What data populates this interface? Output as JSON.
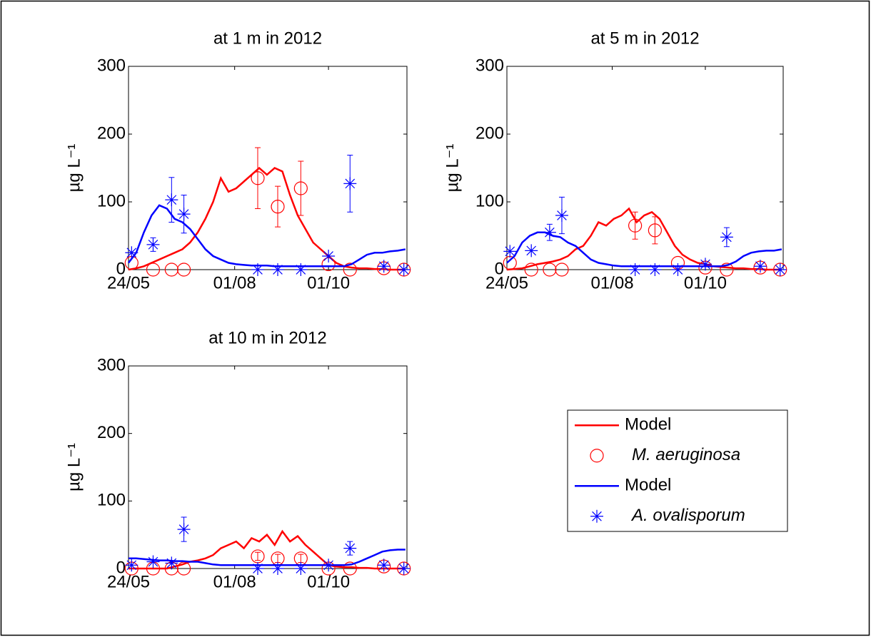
{
  "chart_data": [
    {
      "type": "line",
      "title": "at 1 m in 2012",
      "ylabel": "µg L⁻¹",
      "xlim": [
        145,
        326
      ],
      "xticks": [
        {
          "value": 145,
          "label": "24/05"
        },
        {
          "value": 214,
          "label": "01/08"
        },
        {
          "value": 275,
          "label": "01/10"
        }
      ],
      "ylim": [
        0,
        300
      ],
      "yticks": [
        0,
        100,
        200,
        300
      ],
      "series": [
        {
          "style": "line",
          "color": "#ff0000",
          "x": [
            145,
            150,
            155,
            160,
            165,
            170,
            175,
            180,
            185,
            190,
            195,
            200,
            205,
            210,
            215,
            220,
            225,
            230,
            235,
            240,
            245,
            250,
            255,
            260,
            265,
            270,
            275,
            280,
            285,
            290,
            295,
            300,
            305,
            310,
            315,
            320,
            325
          ],
          "values": [
            0,
            2,
            5,
            10,
            15,
            20,
            25,
            30,
            40,
            55,
            75,
            100,
            135,
            115,
            120,
            130,
            140,
            150,
            140,
            150,
            145,
            110,
            80,
            60,
            40,
            30,
            20,
            10,
            5,
            3,
            2,
            2,
            1,
            1,
            0,
            0,
            0
          ]
        },
        {
          "style": "circle",
          "color": "#ff0000",
          "x": [
            147,
            161,
            173,
            181,
            229,
            242,
            257,
            275,
            289,
            311,
            324
          ],
          "values": [
            10,
            0,
            0,
            0,
            135,
            93,
            120,
            8,
            0,
            2,
            0
          ],
          "errors": [
            null,
            null,
            null,
            null,
            45,
            30,
            40,
            null,
            null,
            null,
            null
          ]
        },
        {
          "style": "line",
          "color": "#0000ff",
          "x": [
            145,
            150,
            155,
            160,
            165,
            170,
            175,
            180,
            185,
            190,
            195,
            200,
            205,
            210,
            215,
            220,
            225,
            230,
            235,
            240,
            245,
            250,
            255,
            260,
            265,
            270,
            275,
            280,
            285,
            290,
            295,
            300,
            305,
            310,
            315,
            320,
            325
          ],
          "values": [
            10,
            25,
            55,
            80,
            95,
            90,
            75,
            70,
            60,
            45,
            30,
            20,
            15,
            10,
            8,
            7,
            6,
            6,
            6,
            5,
            5,
            5,
            5,
            5,
            5,
            5,
            5,
            5,
            5,
            8,
            15,
            22,
            25,
            25,
            27,
            28,
            30
          ]
        },
        {
          "style": "star",
          "color": "#0000ff",
          "x": [
            147,
            161,
            173,
            181,
            229,
            242,
            257,
            275,
            289,
            311,
            324
          ],
          "values": [
            25,
            37,
            103,
            82,
            0,
            0,
            0,
            20,
            127,
            5,
            0
          ],
          "errors": [
            null,
            10,
            33,
            28,
            null,
            null,
            null,
            null,
            42,
            null,
            null
          ]
        }
      ]
    },
    {
      "type": "line",
      "title": "at 5 m in 2012",
      "ylabel": "µg L⁻¹",
      "xlim": [
        145,
        326
      ],
      "xticks": [
        {
          "value": 145,
          "label": "24/05"
        },
        {
          "value": 214,
          "label": "01/08"
        },
        {
          "value": 275,
          "label": "01/10"
        }
      ],
      "ylim": [
        0,
        300
      ],
      "yticks": [
        0,
        100,
        200,
        300
      ],
      "series": [
        {
          "style": "line",
          "color": "#ff0000",
          "x": [
            145,
            150,
            155,
            160,
            165,
            170,
            175,
            180,
            185,
            190,
            195,
            200,
            205,
            210,
            215,
            220,
            225,
            230,
            235,
            240,
            245,
            250,
            255,
            260,
            265,
            270,
            275,
            280,
            285,
            290,
            295,
            300,
            305,
            310,
            315,
            320,
            325
          ],
          "values": [
            0,
            1,
            2,
            5,
            8,
            10,
            12,
            15,
            20,
            30,
            35,
            50,
            70,
            65,
            75,
            80,
            90,
            70,
            80,
            85,
            75,
            55,
            35,
            22,
            15,
            10,
            8,
            5,
            4,
            3,
            2,
            2,
            1,
            1,
            0,
            0,
            0
          ]
        },
        {
          "style": "circle",
          "color": "#ff0000",
          "x": [
            147,
            161,
            173,
            181,
            229,
            242,
            257,
            275,
            289,
            311,
            324
          ],
          "values": [
            10,
            0,
            0,
            0,
            65,
            58,
            10,
            3,
            0,
            3,
            0
          ],
          "errors": [
            null,
            null,
            null,
            null,
            20,
            20,
            null,
            null,
            null,
            null,
            null
          ]
        },
        {
          "style": "line",
          "color": "#0000ff",
          "x": [
            145,
            150,
            155,
            160,
            165,
            170,
            175,
            180,
            185,
            190,
            195,
            200,
            205,
            210,
            215,
            220,
            225,
            230,
            235,
            240,
            245,
            250,
            255,
            260,
            265,
            270,
            275,
            280,
            285,
            290,
            295,
            300,
            305,
            310,
            315,
            320,
            325
          ],
          "values": [
            10,
            20,
            40,
            50,
            55,
            55,
            50,
            48,
            40,
            35,
            25,
            15,
            10,
            8,
            6,
            5,
            5,
            5,
            5,
            5,
            5,
            5,
            5,
            5,
            5,
            5,
            5,
            5,
            5,
            7,
            12,
            20,
            25,
            27,
            28,
            28,
            30
          ]
        },
        {
          "style": "star",
          "color": "#0000ff",
          "x": [
            147,
            161,
            173,
            181,
            229,
            242,
            257,
            275,
            289,
            311,
            324
          ],
          "values": [
            27,
            28,
            55,
            80,
            0,
            0,
            0,
            8,
            48,
            5,
            0
          ],
          "errors": [
            null,
            null,
            12,
            27,
            null,
            null,
            null,
            null,
            14,
            null,
            null
          ]
        }
      ]
    },
    {
      "type": "line",
      "title": "at 10 m in 2012",
      "ylabel": "µg L⁻¹",
      "xlim": [
        145,
        326
      ],
      "xticks": [
        {
          "value": 145,
          "label": "24/05"
        },
        {
          "value": 214,
          "label": "01/08"
        },
        {
          "value": 275,
          "label": "01/10"
        }
      ],
      "ylim": [
        0,
        300
      ],
      "yticks": [
        0,
        100,
        200,
        300
      ],
      "legend": "outside-right",
      "series": [
        {
          "name": "Model",
          "style": "line",
          "color": "#ff0000",
          "x": [
            145,
            150,
            155,
            160,
            165,
            170,
            175,
            180,
            185,
            190,
            195,
            200,
            205,
            210,
            215,
            220,
            225,
            230,
            235,
            240,
            245,
            250,
            255,
            260,
            265,
            270,
            275,
            280,
            285,
            290,
            295,
            300,
            305,
            310,
            315,
            320,
            325
          ],
          "values": [
            0,
            0,
            0,
            0,
            0,
            0,
            3,
            6,
            10,
            12,
            15,
            20,
            30,
            35,
            40,
            30,
            45,
            40,
            50,
            35,
            55,
            40,
            48,
            35,
            25,
            15,
            5,
            3,
            2,
            2,
            1,
            1,
            0,
            0,
            0,
            0,
            0
          ]
        },
        {
          "name": "M. aeruginosa",
          "style": "circle",
          "color": "#ff0000",
          "x": [
            147,
            161,
            173,
            181,
            229,
            242,
            257,
            275,
            289,
            311,
            324
          ],
          "values": [
            0,
            0,
            0,
            0,
            18,
            15,
            15,
            0,
            0,
            3,
            0
          ],
          "errors": [
            null,
            null,
            null,
            null,
            6,
            6,
            6,
            null,
            null,
            null,
            null
          ]
        },
        {
          "name": "Model",
          "style": "line",
          "color": "#0000ff",
          "x": [
            145,
            150,
            155,
            160,
            165,
            170,
            175,
            180,
            185,
            190,
            195,
            200,
            205,
            210,
            215,
            220,
            225,
            230,
            235,
            240,
            245,
            250,
            255,
            260,
            265,
            270,
            275,
            280,
            285,
            290,
            295,
            300,
            305,
            310,
            315,
            320,
            325
          ],
          "values": [
            15,
            15,
            14,
            13,
            12,
            12,
            11,
            11,
            10,
            10,
            8,
            6,
            5,
            5,
            5,
            5,
            5,
            5,
            5,
            5,
            5,
            5,
            5,
            5,
            5,
            5,
            5,
            5,
            5,
            6,
            10,
            15,
            20,
            25,
            27,
            28,
            28
          ]
        },
        {
          "name": "A. ovalisporum",
          "style": "star",
          "color": "#0000ff",
          "x": [
            147,
            161,
            173,
            181,
            229,
            242,
            257,
            275,
            289,
            311,
            324
          ],
          "values": [
            5,
            10,
            8,
            58,
            0,
            0,
            0,
            5,
            30,
            5,
            0
          ],
          "errors": [
            null,
            null,
            null,
            18,
            null,
            null,
            null,
            null,
            10,
            null,
            null
          ]
        }
      ]
    }
  ]
}
